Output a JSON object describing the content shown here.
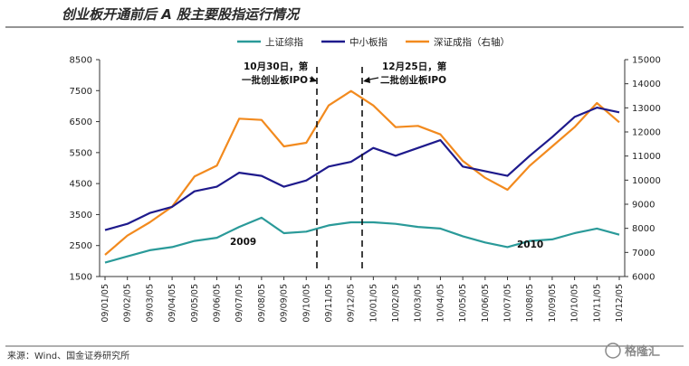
{
  "chart_data": {
    "type": "line",
    "title": "创业板开通前后 A 股主要股指运行情况",
    "categories": [
      "09/01/05",
      "09/02/05",
      "09/03/05",
      "09/04/05",
      "09/05/05",
      "09/06/05",
      "09/07/05",
      "09/08/05",
      "09/09/05",
      "09/10/05",
      "09/11/05",
      "09/12/05",
      "10/01/05",
      "10/02/05",
      "10/03/05",
      "10/04/05",
      "10/05/05",
      "10/06/05",
      "10/07/05",
      "10/08/05",
      "10/09/05",
      "10/10/05",
      "10/11/05",
      "10/12/05"
    ],
    "y_left": {
      "min": 1500,
      "max": 8500,
      "ticks": [
        "1500",
        "2500",
        "3500",
        "4500",
        "5500",
        "6500",
        "7500",
        "8500"
      ]
    },
    "y_right": {
      "min": 6000,
      "max": 15000,
      "ticks": [
        "6000",
        "7000",
        "8000",
        "9000",
        "10000",
        "11000",
        "12000",
        "13000",
        "14000",
        "15000"
      ]
    },
    "series": [
      {
        "name": "上证综指",
        "axis": "left",
        "color": "#2a9a99",
        "values": [
          1950,
          2150,
          2350,
          2450,
          2650,
          2750,
          3100,
          3400,
          2900,
          2950,
          3150,
          3250,
          3250,
          3200,
          3100,
          3050,
          2800,
          2600,
          2450,
          2650,
          2700,
          2900,
          3050,
          2850
        ]
      },
      {
        "name": "中小板指",
        "axis": "left",
        "color": "#1e1a8c",
        "values": [
          3000,
          3200,
          3550,
          3750,
          4250,
          4400,
          4850,
          4750,
          4400,
          4600,
          5050,
          5200,
          5650,
          5400,
          5650,
          5900,
          5050,
          4900,
          4750,
          5400,
          6000,
          6650,
          6950,
          6800
        ]
      },
      {
        "name": "深证成指（右轴）",
        "axis": "right",
        "color": "#f28a1e",
        "values": [
          6900,
          7700,
          8250,
          8900,
          10150,
          10600,
          12550,
          12500,
          11400,
          11550,
          13100,
          13700,
          13100,
          12200,
          12250,
          11900,
          10800,
          10100,
          9600,
          10600,
          11400,
          12200,
          13200,
          12400
        ]
      }
    ],
    "annotations": [
      {
        "lines": [
          "10月30日，第",
          "一批创业板IPO"
        ],
        "at": "09/11/05"
      },
      {
        "lines": [
          "12月25日，第",
          "二批创业板IPO"
        ],
        "at": "09/12/05"
      },
      {
        "lines": [
          "2009"
        ],
        "at": "09/08/05"
      },
      {
        "lines": [
          "2010"
        ],
        "at": "10/07/05"
      }
    ],
    "source": "来源：Wind、国金证券研究所"
  },
  "watermark": "格隆汇"
}
